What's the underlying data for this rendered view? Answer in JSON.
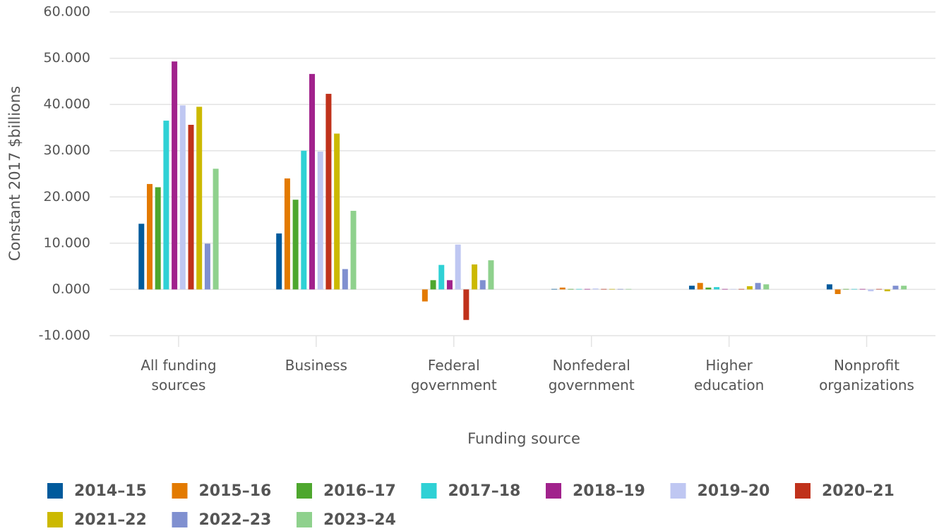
{
  "chart_data": {
    "type": "bar",
    "ylabel": "Constant 2017 $billions",
    "xlabel": "Funding source",
    "categories": [
      "All funding sources",
      "Business",
      "Federal government",
      "Nonfederal government",
      "Higher education",
      "Nonprofit organizations"
    ],
    "series": [
      {
        "name": "2014–15",
        "color": "#005a9c",
        "values": [
          14.2,
          12.1,
          0,
          0.1,
          0.8,
          1.1
        ]
      },
      {
        "name": "2015–16",
        "color": "#e37a00",
        "values": [
          22.8,
          24.0,
          -2.6,
          0.4,
          1.4,
          -1.0
        ]
      },
      {
        "name": "2016–17",
        "color": "#4ea72e",
        "values": [
          22.1,
          19.4,
          2.0,
          0.1,
          0.4,
          0.1
        ]
      },
      {
        "name": "2017–18",
        "color": "#2fd1d5",
        "values": [
          36.5,
          30.0,
          5.3,
          0.1,
          0.5,
          0.1
        ]
      },
      {
        "name": "2018–19",
        "color": "#a1228c",
        "values": [
          49.3,
          46.6,
          2.0,
          0.1,
          0.1,
          0.1
        ]
      },
      {
        "name": "2019–20",
        "color": "#bfc7f2",
        "values": [
          39.8,
          29.8,
          9.7,
          0.2,
          0.1,
          -0.4
        ]
      },
      {
        "name": "2020–21",
        "color": "#c0321b",
        "values": [
          35.6,
          42.3,
          -6.6,
          0.1,
          0.1,
          0.1
        ]
      },
      {
        "name": "2021–22",
        "color": "#ccb900",
        "values": [
          39.5,
          33.7,
          5.4,
          0.1,
          0.7,
          -0.4
        ]
      },
      {
        "name": "2022–23",
        "color": "#8090d0",
        "values": [
          9.9,
          4.4,
          2.0,
          0.1,
          1.4,
          0.8
        ]
      },
      {
        "name": "2023–24",
        "color": "#8fd18d",
        "values": [
          26.1,
          17.0,
          6.3,
          0.1,
          1.1,
          0.8
        ]
      }
    ],
    "ylim": [
      -10,
      60
    ],
    "yticks": [
      {
        "value": -10,
        "label": "-10.000"
      },
      {
        "value": 0,
        "label": "0.000"
      },
      {
        "value": 10,
        "label": "10.000"
      },
      {
        "value": 20,
        "label": "20.000"
      },
      {
        "value": 30,
        "label": "30.000"
      },
      {
        "value": 40,
        "label": "40.000"
      },
      {
        "value": 50,
        "label": "50.000"
      },
      {
        "value": 60,
        "label": "60.000"
      }
    ],
    "grid": true,
    "legend": "bottom"
  }
}
